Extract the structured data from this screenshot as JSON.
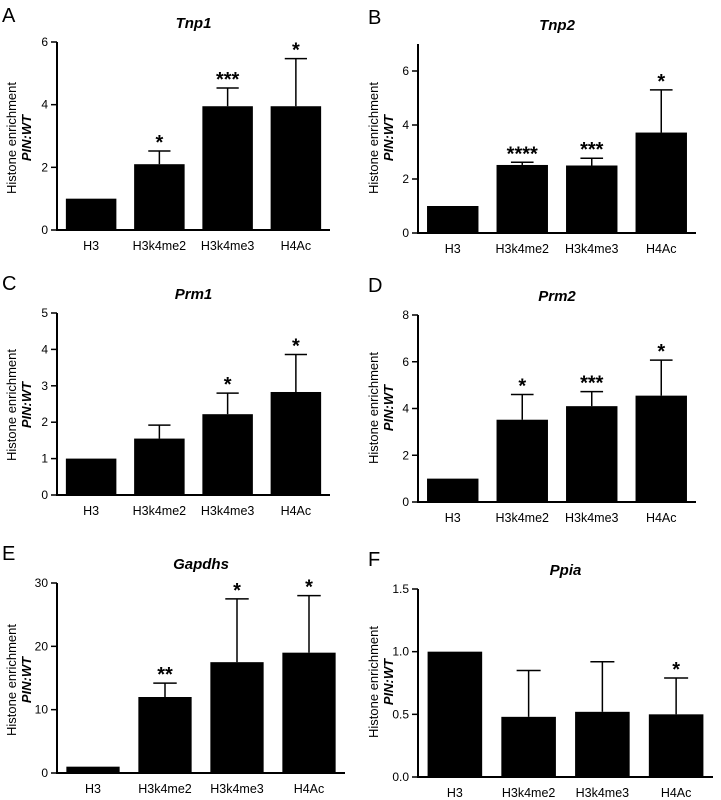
{
  "figure": {
    "ylabel_line1": "Histone enrichment",
    "ylabel_line2": "PIN:WT"
  },
  "chart_data": [
    {
      "panel": "A",
      "type": "bar",
      "title": "Tnp1",
      "categories": [
        "H3",
        "H3k4me2",
        "H3k4me3",
        "H4Ac"
      ],
      "values": [
        1.0,
        2.1,
        3.95,
        3.95
      ],
      "errors": [
        0,
        0.42,
        0.58,
        1.52
      ],
      "significance": [
        "",
        "*",
        "***",
        "*"
      ],
      "ylim": [
        0,
        6
      ],
      "yticks": [
        0,
        2,
        4,
        6
      ],
      "ylabel": "Histone enrichment PIN:WT"
    },
    {
      "panel": "B",
      "type": "bar",
      "title": "Tnp2",
      "categories": [
        "H3",
        "H3k4me2",
        "H3k4me3",
        "H4Ac"
      ],
      "values": [
        1.0,
        2.52,
        2.5,
        3.72
      ],
      "errors": [
        0,
        0.1,
        0.27,
        1.58
      ],
      "significance": [
        "",
        "****",
        "***",
        "*"
      ],
      "ylim": [
        0,
        7
      ],
      "yticks": [
        0,
        2,
        4,
        6
      ],
      "ylabel": "Histone enrichment PIN:WT"
    },
    {
      "panel": "C",
      "type": "bar",
      "title": "Prm1",
      "categories": [
        "H3",
        "H3k4me2",
        "H3k4me3",
        "H4Ac"
      ],
      "values": [
        1.0,
        1.55,
        2.22,
        2.83
      ],
      "errors": [
        0,
        0.37,
        0.58,
        1.03
      ],
      "significance": [
        "",
        "",
        "*",
        "*"
      ],
      "ylim": [
        0,
        5
      ],
      "yticks": [
        0,
        1,
        2,
        3,
        4,
        5
      ],
      "ylabel": "Histone enrichment PIN:WT"
    },
    {
      "panel": "D",
      "type": "bar",
      "title": "Prm2",
      "categories": [
        "H3",
        "H3k4me2",
        "H3k4me3",
        "H4Ac"
      ],
      "values": [
        1.0,
        3.52,
        4.1,
        4.55
      ],
      "errors": [
        0,
        1.08,
        0.62,
        1.52
      ],
      "significance": [
        "",
        "*",
        "***",
        "*"
      ],
      "ylim": [
        0,
        8
      ],
      "yticks": [
        0,
        2,
        4,
        6,
        8
      ],
      "ylabel": "Histone enrichment PIN:WT"
    },
    {
      "panel": "E",
      "type": "bar",
      "title": "Gapdhs",
      "categories": [
        "H3",
        "H3k4me2",
        "H3k4me3",
        "H4Ac"
      ],
      "values": [
        1.0,
        12.0,
        17.5,
        19.0
      ],
      "errors": [
        0,
        2.2,
        10.0,
        9.0
      ],
      "significance": [
        "",
        "**",
        "*",
        "*"
      ],
      "ylim": [
        0,
        30
      ],
      "yticks": [
        0,
        10,
        20,
        30
      ],
      "ylabel": "Histone enrichment PIN:WT"
    },
    {
      "panel": "F",
      "type": "bar",
      "title": "Ppia",
      "categories": [
        "H3",
        "H3k4me2",
        "H3k4me3",
        "H4Ac"
      ],
      "values": [
        1.0,
        0.48,
        0.52,
        0.5
      ],
      "errors": [
        0,
        0.37,
        0.4,
        0.29
      ],
      "significance": [
        "",
        "",
        "",
        "*"
      ],
      "ylim": [
        0,
        1.5
      ],
      "yticks": [
        "0.0",
        "0.5",
        "1.0",
        "1.5"
      ],
      "ylabel": "Histone enrichment PIN:WT"
    }
  ]
}
